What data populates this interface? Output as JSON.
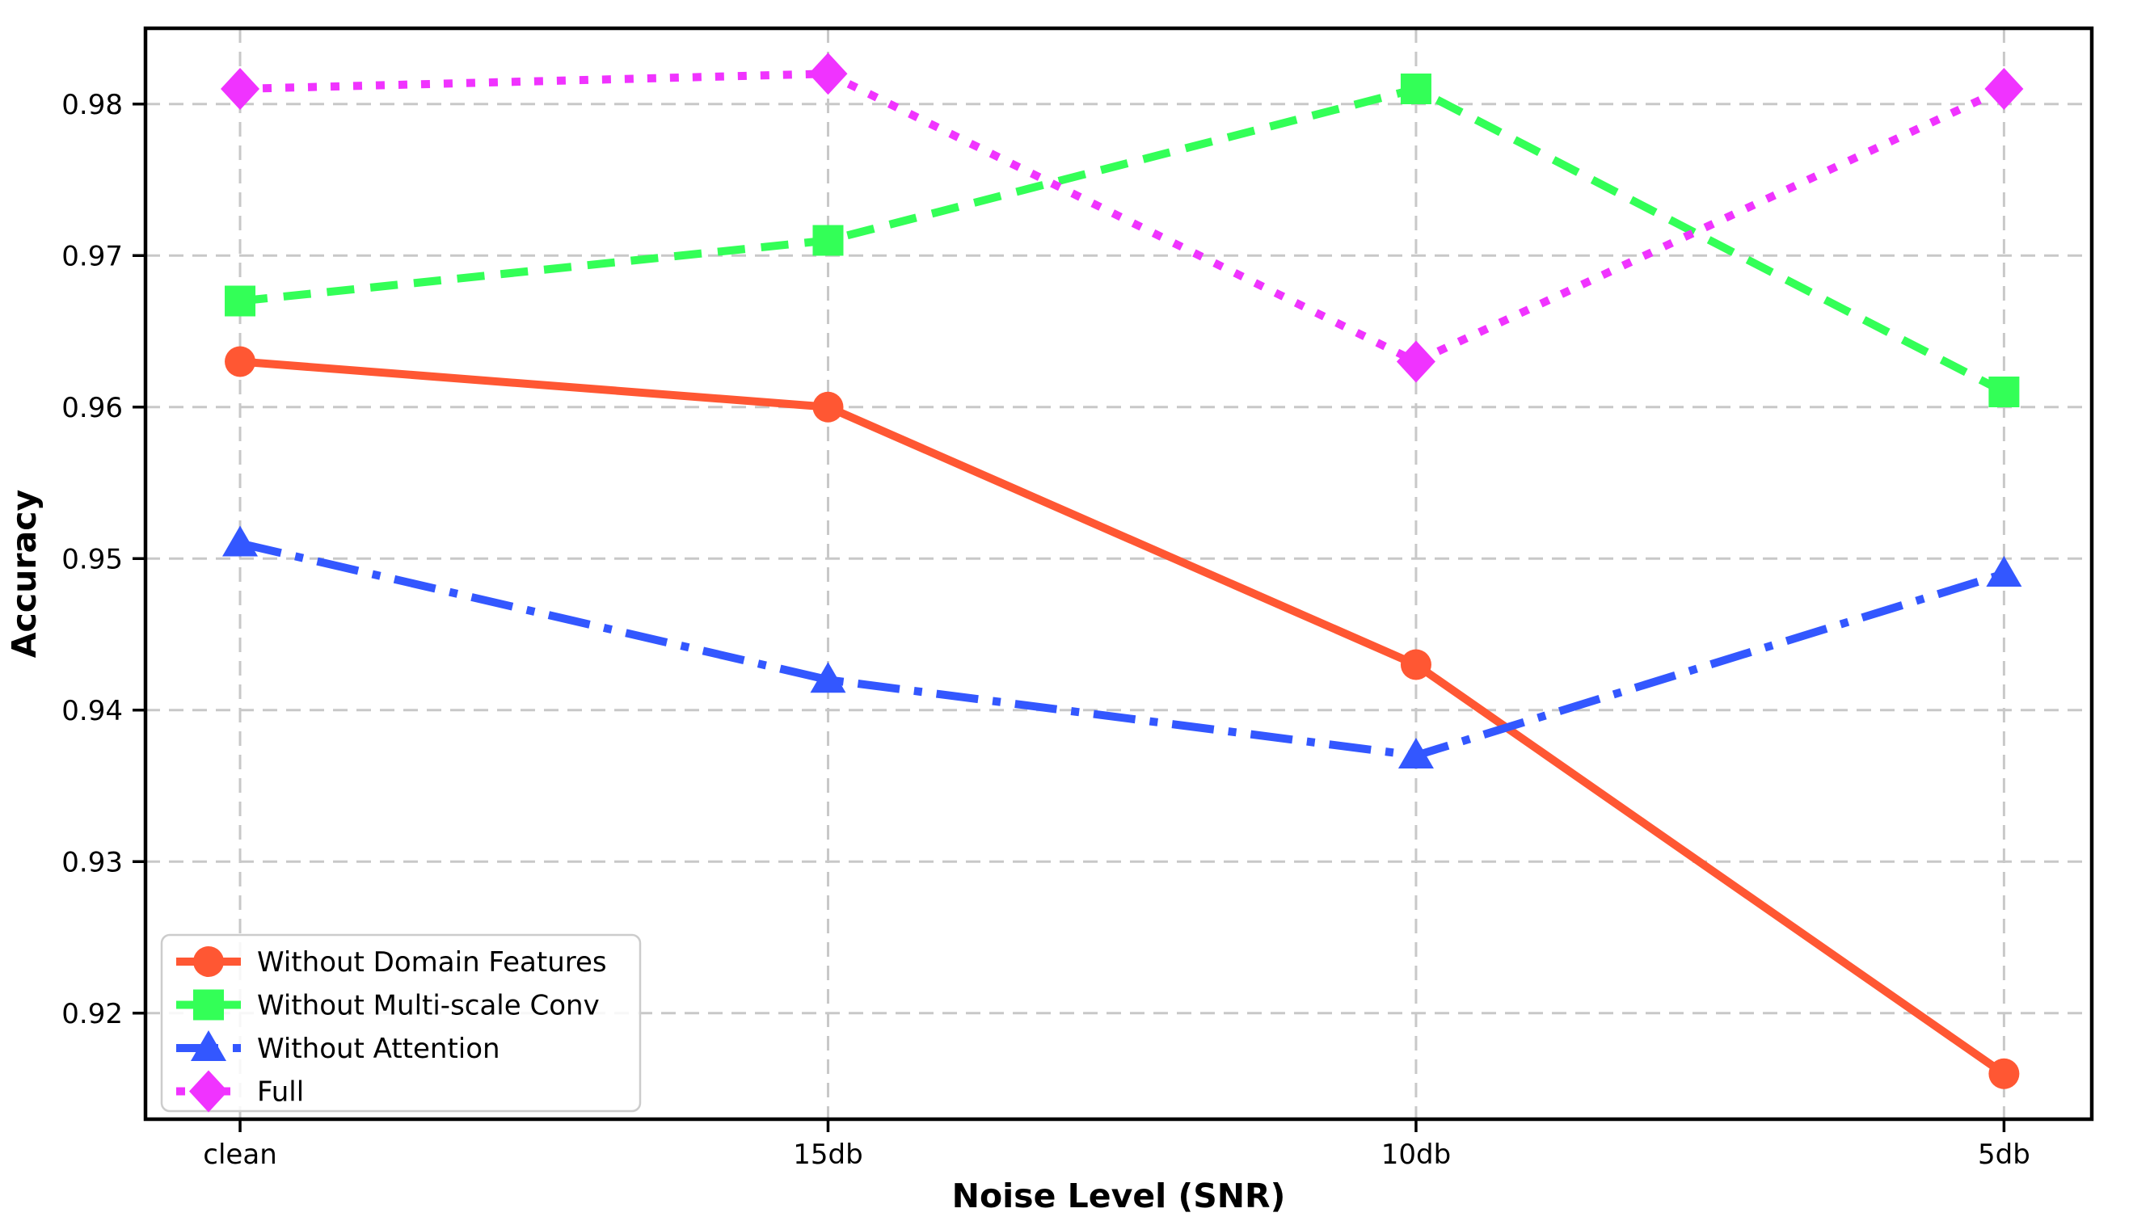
{
  "chart_data": {
    "type": "line",
    "title": "",
    "xlabel": "Noise Level (SNR)",
    "ylabel": "Accuracy",
    "categories": [
      "clean",
      "15db",
      "10db",
      "5db"
    ],
    "yticks": [
      0.92,
      0.93,
      0.94,
      0.95,
      0.96,
      0.97,
      0.98
    ],
    "ylim": [
      0.913,
      0.985
    ],
    "grid": true,
    "legend_position": "lower-left",
    "series": [
      {
        "name": "Without Domain Features",
        "values": [
          0.963,
          0.96,
          0.943,
          0.916
        ],
        "color": "#FF5733",
        "linestyle": "solid",
        "marker": "circle"
      },
      {
        "name": "Without Multi-scale Conv",
        "values": [
          0.967,
          0.971,
          0.981,
          0.961
        ],
        "color": "#33FF57",
        "linestyle": "dashed",
        "marker": "square"
      },
      {
        "name": "Without Attention",
        "values": [
          0.951,
          0.942,
          0.937,
          0.949
        ],
        "color": "#3357FF",
        "linestyle": "dashdot",
        "marker": "triangle"
      },
      {
        "name": "Full",
        "values": [
          0.981,
          0.982,
          0.963,
          0.981
        ],
        "color": "#F033FF",
        "linestyle": "dotted",
        "marker": "diamond"
      }
    ],
    "colors": {
      "grid": "#c8c8c8",
      "axis": "#000000",
      "background": "#ffffff",
      "legend_border": "#cccccc"
    }
  }
}
